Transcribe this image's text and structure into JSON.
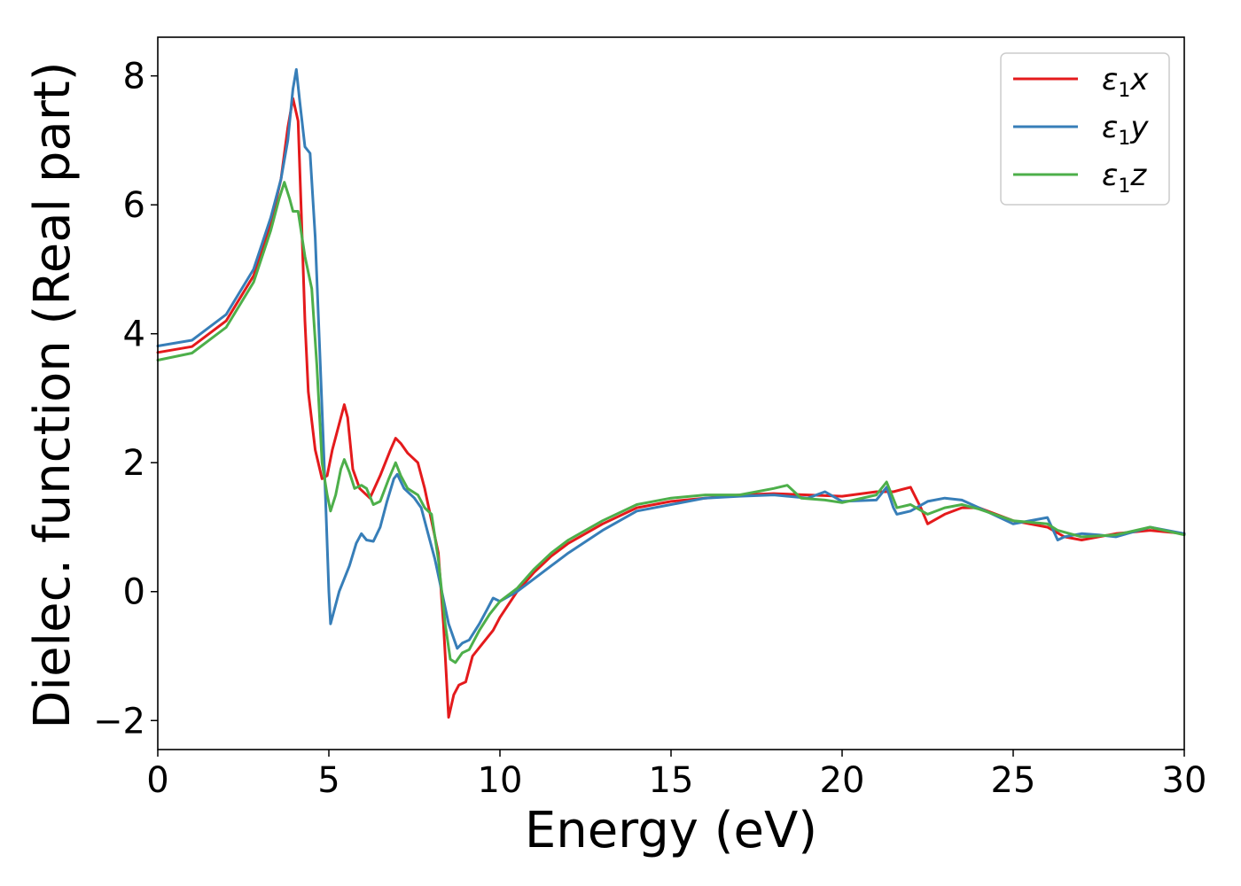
{
  "chart_data": {
    "type": "line",
    "title": "",
    "xlabel": "Energy (eV)",
    "ylabel": "Dielec. function (Real part)",
    "xlim": [
      0,
      30
    ],
    "ylim": [
      -2.45,
      8.6
    ],
    "x_ticks": [
      0,
      5,
      10,
      15,
      20,
      25,
      30
    ],
    "x_tick_labels": [
      "0",
      "5",
      "10",
      "15",
      "20",
      "25",
      "30"
    ],
    "y_ticks": [
      -2,
      0,
      2,
      4,
      6,
      8
    ],
    "y_tick_labels": [
      "−2",
      "0",
      "2",
      "4",
      "6",
      "8"
    ],
    "grid": false,
    "legend_position": "top-right",
    "series": [
      {
        "name": "ε₁x",
        "legend_parts": {
          "symbol": "ε",
          "sub": "1",
          "axis": "x"
        },
        "color": "#e41a1c",
        "points": [
          [
            0,
            3.71
          ],
          [
            1,
            3.8
          ],
          [
            2,
            4.2
          ],
          [
            2.8,
            4.9
          ],
          [
            3.3,
            5.7
          ],
          [
            3.6,
            6.4
          ],
          [
            3.8,
            7.2
          ],
          [
            3.95,
            7.65
          ],
          [
            4.1,
            7.3
          ],
          [
            4.2,
            5.8
          ],
          [
            4.3,
            4.2
          ],
          [
            4.4,
            3.1
          ],
          [
            4.6,
            2.2
          ],
          [
            4.8,
            1.75
          ],
          [
            4.95,
            1.8
          ],
          [
            5.1,
            2.2
          ],
          [
            5.3,
            2.6
          ],
          [
            5.45,
            2.9
          ],
          [
            5.55,
            2.7
          ],
          [
            5.7,
            1.9
          ],
          [
            5.9,
            1.6
          ],
          [
            6.2,
            1.45
          ],
          [
            6.5,
            1.8
          ],
          [
            6.8,
            2.2
          ],
          [
            6.95,
            2.38
          ],
          [
            7.1,
            2.3
          ],
          [
            7.3,
            2.15
          ],
          [
            7.6,
            2.0
          ],
          [
            7.8,
            1.6
          ],
          [
            8.0,
            1.1
          ],
          [
            8.2,
            0.6
          ],
          [
            8.35,
            -0.5
          ],
          [
            8.5,
            -1.95
          ],
          [
            8.65,
            -1.6
          ],
          [
            8.8,
            -1.45
          ],
          [
            9.0,
            -1.4
          ],
          [
            9.2,
            -1.0
          ],
          [
            9.5,
            -0.8
          ],
          [
            9.8,
            -0.6
          ],
          [
            10.0,
            -0.4
          ],
          [
            10.5,
            0.0
          ],
          [
            11,
            0.3
          ],
          [
            11.5,
            0.55
          ],
          [
            12,
            0.75
          ],
          [
            13,
            1.05
          ],
          [
            14,
            1.3
          ],
          [
            15,
            1.4
          ],
          [
            16,
            1.45
          ],
          [
            17,
            1.5
          ],
          [
            18,
            1.52
          ],
          [
            19,
            1.5
          ],
          [
            20,
            1.48
          ],
          [
            21,
            1.55
          ],
          [
            21.5,
            1.55
          ],
          [
            22,
            1.62
          ],
          [
            22.3,
            1.3
          ],
          [
            22.5,
            1.05
          ],
          [
            23,
            1.2
          ],
          [
            23.5,
            1.3
          ],
          [
            24,
            1.3
          ],
          [
            25,
            1.1
          ],
          [
            26,
            1.0
          ],
          [
            26.5,
            0.85
          ],
          [
            27,
            0.8
          ],
          [
            28,
            0.9
          ],
          [
            29,
            0.95
          ],
          [
            30,
            0.9
          ]
        ]
      },
      {
        "name": "ε₁y",
        "legend_parts": {
          "symbol": "ε",
          "sub": "1",
          "axis": "y"
        },
        "color": "#377eb8",
        "points": [
          [
            0,
            3.81
          ],
          [
            1,
            3.9
          ],
          [
            2,
            4.3
          ],
          [
            2.8,
            5.0
          ],
          [
            3.3,
            5.8
          ],
          [
            3.6,
            6.4
          ],
          [
            3.8,
            7.0
          ],
          [
            3.95,
            7.8
          ],
          [
            4.05,
            8.1
          ],
          [
            4.15,
            7.6
          ],
          [
            4.3,
            6.9
          ],
          [
            4.45,
            6.8
          ],
          [
            4.6,
            5.5
          ],
          [
            4.75,
            3.5
          ],
          [
            4.9,
            1.5
          ],
          [
            5.0,
            0.0
          ],
          [
            5.05,
            -0.5
          ],
          [
            5.15,
            -0.3
          ],
          [
            5.3,
            0.0
          ],
          [
            5.45,
            0.2
          ],
          [
            5.6,
            0.4
          ],
          [
            5.8,
            0.75
          ],
          [
            5.95,
            0.9
          ],
          [
            6.1,
            0.8
          ],
          [
            6.3,
            0.78
          ],
          [
            6.5,
            1.0
          ],
          [
            6.7,
            1.4
          ],
          [
            6.9,
            1.75
          ],
          [
            7.0,
            1.82
          ],
          [
            7.2,
            1.6
          ],
          [
            7.5,
            1.45
          ],
          [
            7.7,
            1.3
          ],
          [
            7.9,
            0.9
          ],
          [
            8.1,
            0.5
          ],
          [
            8.3,
            0.0
          ],
          [
            8.5,
            -0.5
          ],
          [
            8.75,
            -0.88
          ],
          [
            8.9,
            -0.8
          ],
          [
            9.1,
            -0.75
          ],
          [
            9.4,
            -0.5
          ],
          [
            9.6,
            -0.3
          ],
          [
            9.8,
            -0.1
          ],
          [
            10,
            -0.15
          ],
          [
            10.5,
            0.0
          ],
          [
            11,
            0.2
          ],
          [
            11.5,
            0.4
          ],
          [
            12,
            0.6
          ],
          [
            13,
            0.95
          ],
          [
            14,
            1.25
          ],
          [
            15,
            1.35
          ],
          [
            16,
            1.45
          ],
          [
            17,
            1.48
          ],
          [
            18,
            1.5
          ],
          [
            19,
            1.45
          ],
          [
            19.5,
            1.55
          ],
          [
            20,
            1.4
          ],
          [
            21,
            1.42
          ],
          [
            21.3,
            1.62
          ],
          [
            21.5,
            1.3
          ],
          [
            21.6,
            1.2
          ],
          [
            22,
            1.25
          ],
          [
            22.5,
            1.4
          ],
          [
            23,
            1.45
          ],
          [
            23.5,
            1.42
          ],
          [
            24,
            1.3
          ],
          [
            25,
            1.05
          ],
          [
            26,
            1.15
          ],
          [
            26.3,
            0.8
          ],
          [
            26.5,
            0.85
          ],
          [
            27,
            0.9
          ],
          [
            27.5,
            0.88
          ],
          [
            28,
            0.85
          ],
          [
            29,
            1.0
          ],
          [
            30,
            0.9
          ]
        ]
      },
      {
        "name": "ε₁z",
        "legend_parts": {
          "symbol": "ε",
          "sub": "1",
          "axis": "z"
        },
        "color": "#4daf4a",
        "points": [
          [
            0,
            3.59
          ],
          [
            1,
            3.7
          ],
          [
            2,
            4.1
          ],
          [
            2.8,
            4.8
          ],
          [
            3.3,
            5.6
          ],
          [
            3.55,
            6.1
          ],
          [
            3.7,
            6.35
          ],
          [
            3.85,
            6.1
          ],
          [
            3.95,
            5.9
          ],
          [
            4.1,
            5.9
          ],
          [
            4.3,
            5.2
          ],
          [
            4.5,
            4.7
          ],
          [
            4.65,
            3.5
          ],
          [
            4.8,
            2.0
          ],
          [
            4.95,
            1.5
          ],
          [
            5.05,
            1.25
          ],
          [
            5.2,
            1.5
          ],
          [
            5.35,
            1.9
          ],
          [
            5.45,
            2.05
          ],
          [
            5.6,
            1.85
          ],
          [
            5.75,
            1.6
          ],
          [
            5.95,
            1.65
          ],
          [
            6.1,
            1.6
          ],
          [
            6.3,
            1.35
          ],
          [
            6.5,
            1.4
          ],
          [
            6.75,
            1.75
          ],
          [
            6.95,
            2.0
          ],
          [
            7.1,
            1.8
          ],
          [
            7.3,
            1.6
          ],
          [
            7.6,
            1.5
          ],
          [
            7.8,
            1.3
          ],
          [
            8.0,
            1.2
          ],
          [
            8.2,
            0.5
          ],
          [
            8.4,
            -0.5
          ],
          [
            8.55,
            -1.05
          ],
          [
            8.7,
            -1.1
          ],
          [
            8.9,
            -0.95
          ],
          [
            9.1,
            -0.9
          ],
          [
            9.4,
            -0.6
          ],
          [
            9.7,
            -0.35
          ],
          [
            10,
            -0.15
          ],
          [
            10.5,
            0.05
          ],
          [
            11,
            0.35
          ],
          [
            11.5,
            0.6
          ],
          [
            12,
            0.8
          ],
          [
            13,
            1.1
          ],
          [
            14,
            1.35
          ],
          [
            15,
            1.45
          ],
          [
            16,
            1.5
          ],
          [
            17,
            1.5
          ],
          [
            17.5,
            1.55
          ],
          [
            18,
            1.6
          ],
          [
            18.4,
            1.65
          ],
          [
            18.8,
            1.45
          ],
          [
            19.5,
            1.42
          ],
          [
            20,
            1.38
          ],
          [
            21,
            1.5
          ],
          [
            21.3,
            1.7
          ],
          [
            21.6,
            1.3
          ],
          [
            22,
            1.35
          ],
          [
            22.5,
            1.2
          ],
          [
            23,
            1.3
          ],
          [
            23.5,
            1.35
          ],
          [
            24,
            1.28
          ],
          [
            25,
            1.1
          ],
          [
            26,
            1.05
          ],
          [
            26.3,
            0.95
          ],
          [
            27,
            0.85
          ],
          [
            28,
            0.88
          ],
          [
            29,
            1.0
          ],
          [
            30,
            0.88
          ]
        ]
      }
    ]
  }
}
